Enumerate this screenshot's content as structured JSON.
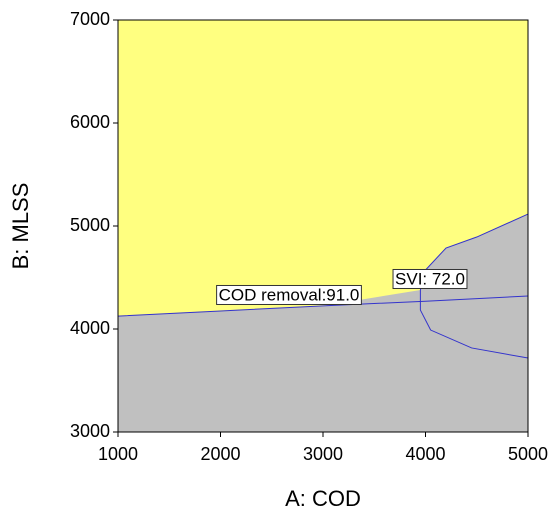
{
  "chart_data": {
    "type": "overlay",
    "x_label": "A: COD",
    "y_label": "B: MLSS",
    "xlim": [
      1000,
      5000
    ],
    "xticks": [
      1000,
      2000,
      3000,
      4000,
      5000
    ],
    "ylim": [
      3000,
      7000
    ],
    "yticks": [
      3000,
      4000,
      5000,
      6000,
      7000
    ],
    "region_color": "#ffff80",
    "background_color": "#c0c0c0",
    "contour_color": "#3333cc",
    "series": [
      {
        "name": "COD removal:91.0",
        "x": [
          1000,
          2000,
          3000,
          4000,
          5000
        ],
        "values": [
          4125,
          4175,
          4225,
          4270,
          4320
        ]
      },
      {
        "name": "SVI: 72.0",
        "x": [
          5000,
          4450,
          4050,
          3950,
          3950,
          3950,
          4000,
          4200,
          4500,
          5000
        ],
        "values": [
          3718,
          3816,
          3990,
          4184,
          4265,
          4379,
          4573,
          4786,
          4893,
          5116
        ]
      }
    ]
  }
}
